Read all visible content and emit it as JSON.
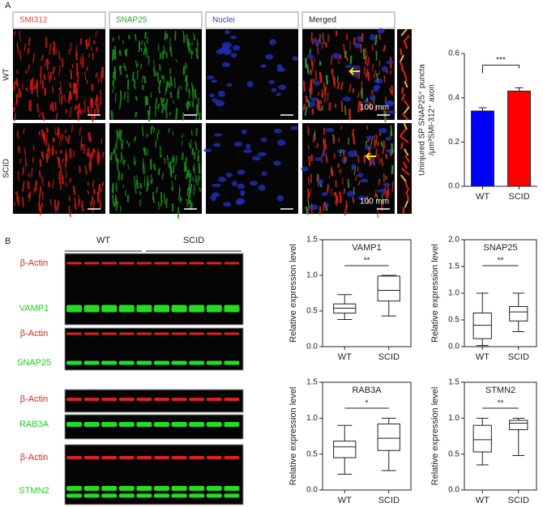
{
  "panel_labels": [
    "A",
    "B"
  ],
  "microscopy": {
    "channels": [
      "SMI312",
      "SNAP25",
      "Nuclei",
      "Merged"
    ],
    "rows": [
      "WT",
      "SCID"
    ],
    "scale_labels": [
      "100 mm",
      "100 mm"
    ]
  },
  "blot": {
    "groups": [
      "WT",
      "SCID"
    ],
    "labels": [
      "β-Actin",
      "VAMP1",
      "β-Actin",
      "SNAP25",
      "β-Actin",
      "RAB3A",
      "β-Actin",
      "STMN2"
    ]
  },
  "chart_data": [
    {
      "type": "bar",
      "y_label": [
        "Uninjured SP SNAP25⁺ puncta",
        "/μm³SMI-312⁺ axon"
      ],
      "categories": [
        "WT",
        "SCID"
      ],
      "values": [
        0.34,
        0.43
      ],
      "errors": [
        0.015,
        0.015
      ],
      "colors": [
        "#0000ff",
        "#ff0000"
      ],
      "ylim": [
        0,
        0.6
      ],
      "yticks": [
        {
          "value": 0,
          "label": "0.0"
        },
        {
          "value": 0.2,
          "label": "0.2"
        },
        {
          "value": 0.4,
          "label": "0.4"
        },
        {
          "value": 0.6,
          "label": "0.6"
        }
      ],
      "annotation": "***"
    },
    {
      "type": "box",
      "title": "VAMP1",
      "y_label": "Relative expression level",
      "categories": [
        "WT",
        "SCID"
      ],
      "boxes": [
        {
          "min": 0.38,
          "q1": 0.47,
          "median": 0.54,
          "q3": 0.6,
          "max": 0.73
        },
        {
          "min": 0.43,
          "q1": 0.64,
          "median": 0.79,
          "q3": 0.99,
          "max": 1.0
        }
      ],
      "ylim": [
        0,
        1.5
      ],
      "yticks": [
        {
          "value": 0,
          "label": "0.0"
        },
        {
          "value": 0.5,
          "label": "0.5"
        },
        {
          "value": 1,
          "label": "1.0"
        },
        {
          "value": 1.5,
          "label": "1.5"
        }
      ],
      "annotation": "**"
    },
    {
      "type": "box",
      "title": "SNAP25",
      "y_label": "Relative expression level",
      "categories": [
        "WT",
        "SCID"
      ],
      "boxes": [
        {
          "min": 0.02,
          "q1": 0.15,
          "median": 0.4,
          "q3": 0.63,
          "max": 1.0
        },
        {
          "min": 0.28,
          "q1": 0.48,
          "median": 0.65,
          "q3": 0.75,
          "max": 1.0
        }
      ],
      "ylim": [
        0,
        2
      ],
      "yticks": [
        {
          "value": 0,
          "label": "0.0"
        },
        {
          "value": 0.5,
          "label": "0.5"
        },
        {
          "value": 1,
          "label": "1.0"
        },
        {
          "value": 1.5,
          "label": "1.5"
        },
        {
          "value": 2,
          "label": "2.0"
        }
      ],
      "annotation": "**"
    },
    {
      "type": "box",
      "title": "RAB3A",
      "y_label": "Relative expression level",
      "categories": [
        "WT",
        "SCID"
      ],
      "boxes": [
        {
          "min": 0.22,
          "q1": 0.45,
          "median": 0.6,
          "q3": 0.68,
          "max": 0.9
        },
        {
          "min": 0.27,
          "q1": 0.55,
          "median": 0.72,
          "q3": 0.92,
          "max": 1.0
        }
      ],
      "ylim": [
        0,
        1.5
      ],
      "yticks": [
        {
          "value": 0,
          "label": "0.0"
        },
        {
          "value": 0.5,
          "label": "0.5"
        },
        {
          "value": 1,
          "label": "1.0"
        },
        {
          "value": 1.5,
          "label": "1.5"
        }
      ],
      "annotation": "*"
    },
    {
      "type": "box",
      "title": "STMN2",
      "y_label": "Relative expression level",
      "categories": [
        "WT",
        "SCID"
      ],
      "boxes": [
        {
          "min": 0.35,
          "q1": 0.53,
          "median": 0.7,
          "q3": 0.9,
          "max": 1.0
        },
        {
          "min": 0.48,
          "q1": 0.84,
          "median": 0.93,
          "q3": 0.97,
          "max": 1.0
        }
      ],
      "ylim": [
        0,
        1.5
      ],
      "yticks": [
        {
          "value": 0,
          "label": "0.0"
        },
        {
          "value": 0.5,
          "label": "0.5"
        },
        {
          "value": 1,
          "label": "1.0"
        },
        {
          "value": 1.5,
          "label": "1.5"
        }
      ],
      "annotation": "**"
    }
  ]
}
